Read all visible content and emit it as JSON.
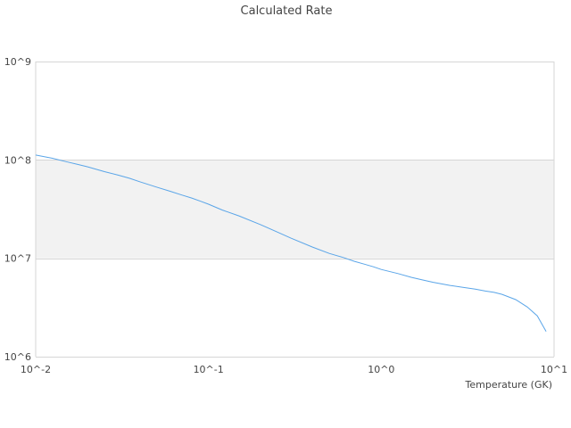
{
  "chart_data": {
    "type": "line",
    "title": "Calculated Rate",
    "xlabel": "Temperature (GK)",
    "ylabel": "",
    "x_scale": "log",
    "y_scale": "log",
    "xlim": [
      0.01,
      10
    ],
    "ylim": [
      1000000,
      1000000000
    ],
    "grid": true,
    "alternating_band_color": "#f2f2f2",
    "line_color": "#5aa5e8",
    "x_ticks": [
      {
        "value": 0.01,
        "label": "10^-2"
      },
      {
        "value": 0.1,
        "label": "10^-1"
      },
      {
        "value": 1,
        "label": "10^0"
      },
      {
        "value": 10,
        "label": "10^1"
      }
    ],
    "y_ticks": [
      {
        "value": 1000000,
        "label": "10^6"
      },
      {
        "value": 10000000,
        "label": "10^7"
      },
      {
        "value": 100000000,
        "label": "10^8"
      },
      {
        "value": 1000000000,
        "label": "10^9"
      }
    ],
    "series": [
      {
        "x": [
          0.01,
          0.0125,
          0.015,
          0.0175,
          0.02,
          0.025,
          0.03,
          0.035,
          0.04,
          0.05,
          0.06,
          0.07,
          0.08,
          0.09,
          0.1,
          0.12,
          0.15,
          0.2,
          0.25,
          0.3,
          0.4,
          0.5,
          0.6,
          0.7,
          0.8,
          0.9,
          1.0,
          1.25,
          1.5,
          1.75,
          2.0,
          2.5,
          3.0,
          3.5,
          4.0,
          4.5,
          5.0,
          6.0,
          7.0,
          8.0,
          9.0
        ],
        "y": [
          112000000,
          104000000,
          96000000,
          90000000,
          85000000,
          76000000,
          70000000,
          65000000,
          60000000,
          53000000,
          48000000,
          44000000,
          41000000,
          38000000,
          35500000,
          31000000,
          27000000,
          22000000,
          18500000,
          16000000,
          13000000,
          11200000,
          10200000,
          9300000,
          8700000,
          8200000,
          7700000,
          7000000,
          6400000,
          6000000,
          5700000,
          5300000,
          5050000,
          4850000,
          4650000,
          4500000,
          4300000,
          3800000,
          3200000,
          2600000,
          1800000
        ]
      }
    ]
  }
}
